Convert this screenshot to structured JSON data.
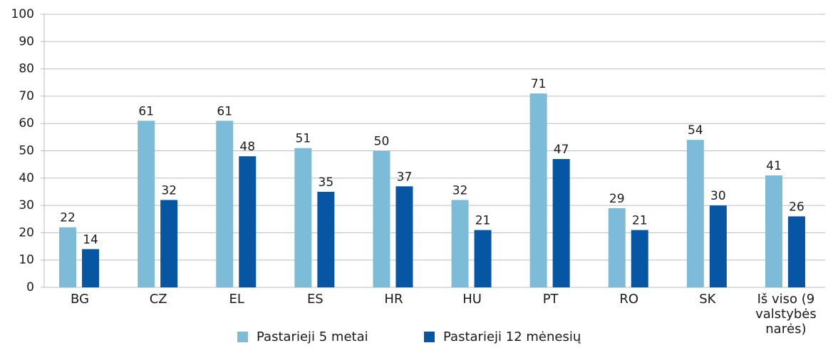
{
  "chart_data": {
    "type": "bar",
    "categories": [
      "BG",
      "CZ",
      "EL",
      "ES",
      "HR",
      "HU",
      "PT",
      "RO",
      "SK",
      "Iš viso (9 valstybės narės)"
    ],
    "series": [
      {
        "name": "Pastarieji 5 metai",
        "color": "#7dbcd8",
        "values": [
          22,
          61,
          61,
          51,
          50,
          32,
          71,
          29,
          54,
          41
        ]
      },
      {
        "name": "Pastarieji 12 mėnesių",
        "color": "#0756a3",
        "values": [
          14,
          32,
          48,
          35,
          37,
          21,
          47,
          21,
          30,
          26
        ]
      }
    ],
    "ylim": [
      0,
      100
    ],
    "yticks": [
      0,
      10,
      20,
      30,
      40,
      50,
      60,
      70,
      80,
      90,
      100
    ],
    "grid": true
  }
}
